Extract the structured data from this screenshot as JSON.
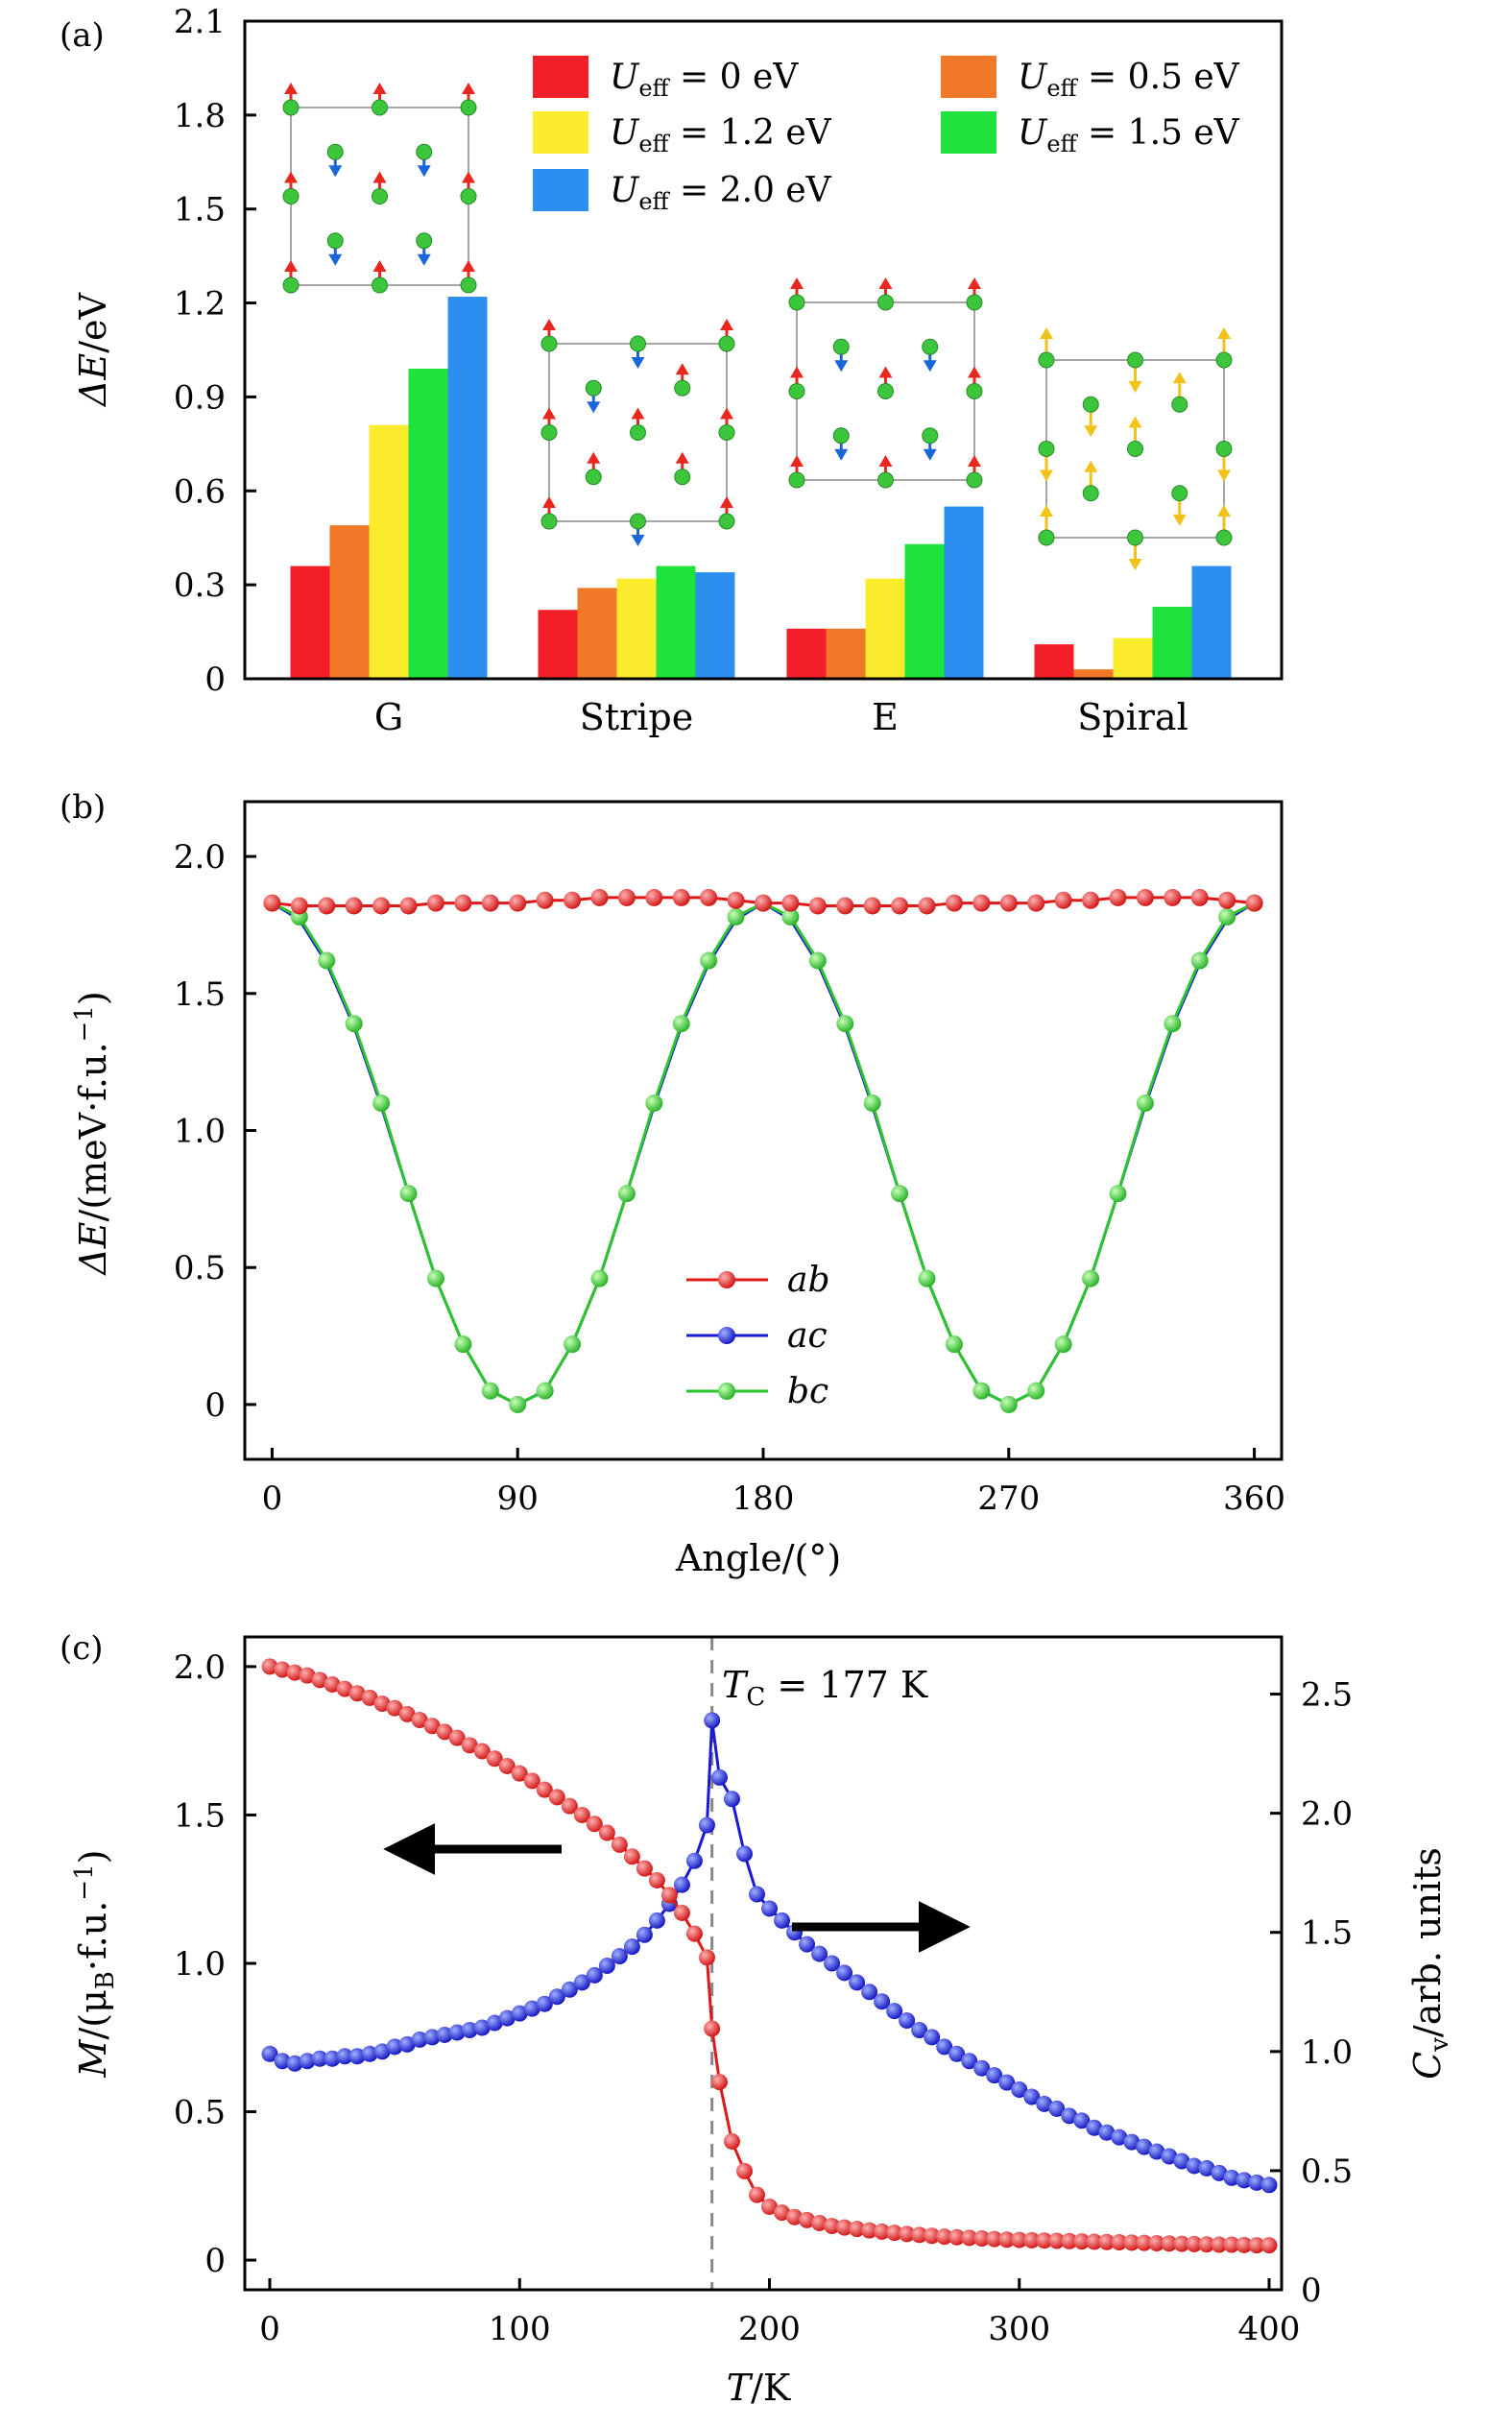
{
  "colors": {
    "u0": "#f41e28",
    "u05": "#f07826",
    "u12": "#fbeb2d",
    "u15": "#1de33c",
    "u20": "#2c8ff0",
    "red": "#e01818",
    "blue": "#1a1ad6",
    "green": "#2cc52c",
    "up_arrow": "#e8281e",
    "down_arrow": "#1a66d8",
    "spiral_arrow": "#f2c21a",
    "atom": "#3cc63c",
    "tc_line": "#888888"
  },
  "chart_data": [
    {
      "type": "bar",
      "panel": "(a)",
      "ylabel": "ΔE/eV",
      "ylim": [
        0,
        2.1
      ],
      "yticks": [
        "0",
        "0.3",
        "0.6",
        "0.9",
        "1.2",
        "1.5",
        "1.8",
        "2.1"
      ],
      "categories": [
        "G",
        "Stripe",
        "E",
        "Spiral"
      ],
      "legend_placement": "top-right",
      "series": [
        {
          "name": "U_eff = 0 eV",
          "legend_sym": "U",
          "legend_sub": "eff",
          "legend_val": " = 0 eV",
          "color_key": "u0",
          "values": [
            0.36,
            0.22,
            0.16,
            0.11
          ]
        },
        {
          "name": "U_eff = 0.5 eV",
          "legend_sym": "U",
          "legend_sub": "eff",
          "legend_val": " = 0.5 eV",
          "color_key": "u05",
          "values": [
            0.49,
            0.29,
            0.16,
            0.03
          ]
        },
        {
          "name": "U_eff = 1.2 eV",
          "legend_sym": "U",
          "legend_sub": "eff",
          "legend_val": " = 1.2 eV",
          "color_key": "u12",
          "values": [
            0.81,
            0.32,
            0.32,
            0.13
          ]
        },
        {
          "name": "U_eff = 1.5 eV",
          "legend_sym": "U",
          "legend_sub": "eff",
          "legend_val": " = 1.5 eV",
          "color_key": "u15",
          "values": [
            0.99,
            0.36,
            0.43,
            0.23
          ]
        },
        {
          "name": "U_eff = 2.0 eV",
          "legend_sym": "U",
          "legend_sub": "eff",
          "legend_val": " = 2.0 eV",
          "color_key": "u20",
          "values": [
            1.22,
            0.34,
            0.55,
            0.36
          ]
        }
      ]
    },
    {
      "type": "line",
      "panel": "(b)",
      "ylabel": "ΔE/(meV·f.u.⁻¹)",
      "xlabel": "Angle/(°)",
      "xlim": [
        -10,
        370
      ],
      "ylim": [
        -0.2,
        2.2
      ],
      "xticks": [
        "0",
        "90",
        "180",
        "270",
        "360"
      ],
      "yticks": [
        "0",
        "0.5",
        "1.0",
        "1.5",
        "2.0"
      ],
      "legend_placement": "lower-center",
      "x": [
        0,
        10,
        20,
        30,
        40,
        50,
        60,
        70,
        80,
        90,
        100,
        110,
        120,
        130,
        140,
        150,
        160,
        170,
        180,
        190,
        200,
        210,
        220,
        230,
        240,
        250,
        260,
        270,
        280,
        290,
        300,
        310,
        320,
        330,
        340,
        350,
        360
      ],
      "series": [
        {
          "name": "ab",
          "color_key": "red",
          "values": [
            1.83,
            1.82,
            1.82,
            1.82,
            1.82,
            1.82,
            1.83,
            1.83,
            1.83,
            1.83,
            1.84,
            1.84,
            1.85,
            1.85,
            1.85,
            1.85,
            1.85,
            1.84,
            1.83,
            1.83,
            1.82,
            1.82,
            1.82,
            1.82,
            1.82,
            1.83,
            1.83,
            1.83,
            1.83,
            1.84,
            1.84,
            1.85,
            1.85,
            1.85,
            1.85,
            1.84,
            1.83
          ]
        },
        {
          "name": "ac",
          "color_key": "blue",
          "values": [
            1.83,
            1.77,
            1.61,
            1.38,
            1.09,
            0.77,
            0.46,
            0.22,
            0.05,
            0.0,
            0.05,
            0.22,
            0.46,
            0.77,
            1.09,
            1.38,
            1.61,
            1.77,
            1.83,
            1.77,
            1.61,
            1.38,
            1.09,
            0.77,
            0.46,
            0.22,
            0.05,
            0.0,
            0.05,
            0.22,
            0.46,
            0.77,
            1.09,
            1.38,
            1.61,
            1.77,
            1.83
          ]
        },
        {
          "name": "bc",
          "color_key": "green",
          "values": [
            1.83,
            1.78,
            1.62,
            1.39,
            1.1,
            0.77,
            0.46,
            0.22,
            0.05,
            0.0,
            0.05,
            0.22,
            0.46,
            0.77,
            1.1,
            1.39,
            1.62,
            1.78,
            1.83,
            1.78,
            1.62,
            1.39,
            1.1,
            0.77,
            0.46,
            0.22,
            0.05,
            0.0,
            0.05,
            0.22,
            0.46,
            0.77,
            1.1,
            1.39,
            1.62,
            1.78,
            1.83
          ]
        }
      ]
    },
    {
      "type": "scatter",
      "panel": "(c)",
      "ylabel_left": "M/(μB·f.u.⁻¹)",
      "ylabel_right": "Cv/arb. units",
      "xlabel": "T/K",
      "xlim": [
        -10,
        405
      ],
      "ylim_left": [
        -0.1,
        2.1
      ],
      "ylim_right": [
        0,
        2.74
      ],
      "xticks": [
        "0",
        "100",
        "200",
        "300",
        "400"
      ],
      "yticks_left": [
        "0",
        "0.5",
        "1.0",
        "1.5",
        "2.0"
      ],
      "yticks_right": [
        "0",
        "0.5",
        "1.0",
        "1.5",
        "2.0",
        "2.5"
      ],
      "annotation": {
        "text": "TC = 177 K",
        "x": 177
      },
      "magnetization": {
        "color_key": "red",
        "x": [
          0,
          5,
          10,
          15,
          20,
          25,
          30,
          35,
          40,
          45,
          50,
          55,
          60,
          65,
          70,
          75,
          80,
          85,
          90,
          95,
          100,
          105,
          110,
          115,
          120,
          125,
          130,
          135,
          140,
          145,
          150,
          155,
          160,
          165,
          170,
          175,
          177,
          180,
          185,
          190,
          195,
          200,
          205,
          210,
          215,
          220,
          225,
          230,
          235,
          240,
          245,
          250,
          255,
          260,
          265,
          270,
          275,
          280,
          285,
          290,
          295,
          300,
          305,
          310,
          315,
          320,
          325,
          330,
          335,
          340,
          345,
          350,
          355,
          360,
          365,
          370,
          375,
          380,
          385,
          390,
          395,
          400
        ],
        "values": [
          2.0,
          1.99,
          1.98,
          1.97,
          1.955,
          1.94,
          1.925,
          1.91,
          1.895,
          1.875,
          1.86,
          1.84,
          1.82,
          1.8,
          1.78,
          1.76,
          1.735,
          1.715,
          1.69,
          1.665,
          1.64,
          1.615,
          1.585,
          1.56,
          1.53,
          1.5,
          1.47,
          1.44,
          1.4,
          1.36,
          1.32,
          1.28,
          1.23,
          1.17,
          1.1,
          1.02,
          0.78,
          0.6,
          0.4,
          0.3,
          0.22,
          0.18,
          0.16,
          0.145,
          0.135,
          0.125,
          0.115,
          0.11,
          0.105,
          0.1,
          0.096,
          0.092,
          0.088,
          0.085,
          0.082,
          0.079,
          0.077,
          0.075,
          0.073,
          0.071,
          0.069,
          0.068,
          0.067,
          0.066,
          0.065,
          0.064,
          0.063,
          0.062,
          0.061,
          0.06,
          0.059,
          0.058,
          0.057,
          0.056,
          0.055,
          0.054,
          0.053,
          0.052,
          0.052,
          0.051,
          0.05,
          0.05
        ]
      },
      "heat_capacity": {
        "color_key": "blue",
        "x": [
          0,
          5,
          10,
          15,
          20,
          25,
          30,
          35,
          40,
          45,
          50,
          55,
          60,
          65,
          70,
          75,
          80,
          85,
          90,
          95,
          100,
          105,
          110,
          115,
          120,
          125,
          130,
          135,
          140,
          145,
          150,
          155,
          160,
          165,
          170,
          175,
          177,
          180,
          185,
          190,
          195,
          200,
          205,
          210,
          215,
          220,
          225,
          230,
          235,
          240,
          245,
          250,
          255,
          260,
          265,
          270,
          275,
          280,
          285,
          290,
          295,
          300,
          305,
          310,
          315,
          320,
          325,
          330,
          335,
          340,
          345,
          350,
          355,
          360,
          365,
          370,
          375,
          380,
          385,
          390,
          395,
          400
        ],
        "values": [
          0.99,
          0.96,
          0.95,
          0.96,
          0.97,
          0.97,
          0.98,
          0.98,
          0.99,
          1.0,
          1.02,
          1.03,
          1.05,
          1.06,
          1.07,
          1.08,
          1.09,
          1.1,
          1.12,
          1.14,
          1.16,
          1.18,
          1.2,
          1.23,
          1.26,
          1.29,
          1.32,
          1.36,
          1.4,
          1.44,
          1.49,
          1.55,
          1.62,
          1.7,
          1.8,
          1.95,
          2.39,
          2.15,
          2.06,
          1.83,
          1.66,
          1.6,
          1.55,
          1.5,
          1.45,
          1.41,
          1.37,
          1.33,
          1.29,
          1.25,
          1.21,
          1.17,
          1.13,
          1.09,
          1.06,
          1.02,
          0.99,
          0.96,
          0.93,
          0.9,
          0.87,
          0.84,
          0.81,
          0.78,
          0.76,
          0.73,
          0.71,
          0.68,
          0.66,
          0.64,
          0.62,
          0.6,
          0.58,
          0.56,
          0.54,
          0.52,
          0.51,
          0.49,
          0.47,
          0.46,
          0.45,
          0.44
        ]
      }
    }
  ]
}
